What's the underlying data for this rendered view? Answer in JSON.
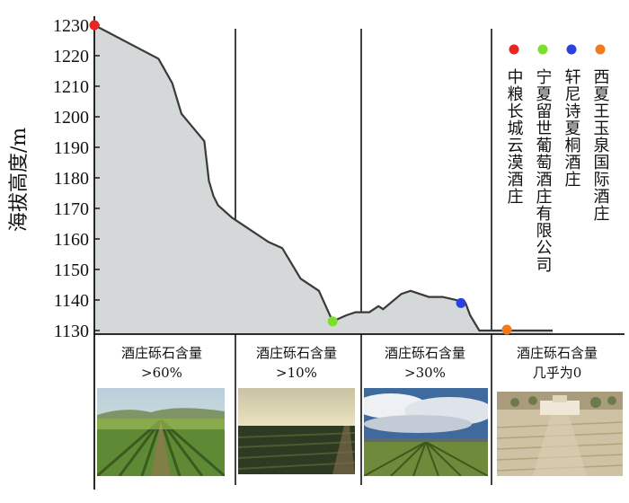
{
  "chart_data": {
    "type": "area",
    "ylabel": "海拔高度/m",
    "ylim": [
      1130,
      1230
    ],
    "yticks": [
      1130,
      1140,
      1150,
      1160,
      1170,
      1180,
      1190,
      1200,
      1210,
      1220,
      1230
    ],
    "fill_color": "#d4d8d8",
    "line_color": "#3a3a3a",
    "x": [
      0,
      0.14,
      0.17,
      0.19,
      0.24,
      0.25,
      0.26,
      0.27,
      0.3,
      0.34,
      0.38,
      0.41,
      0.45,
      0.49,
      0.52,
      0.55,
      0.57,
      0.6,
      0.62,
      0.63,
      0.67,
      0.69,
      0.73,
      0.76,
      0.79,
      0.81,
      0.82,
      0.84,
      0.88,
      0.92,
      1.0
    ],
    "y": [
      1230,
      1219,
      1211,
      1201,
      1192,
      1179,
      1174,
      1171,
      1167,
      1163,
      1159,
      1157,
      1147,
      1143,
      1133,
      1135,
      1136,
      1136,
      1138,
      1137,
      1142,
      1143,
      1141,
      1141,
      1140,
      1139,
      1135,
      1130,
      1130,
      1130,
      1130
    ],
    "wineries": [
      {
        "name": "中粮长城云漠酒庄",
        "color": "#e8251e",
        "x": 0,
        "y": 1230
      },
      {
        "name": "宁夏留世葡萄酒庄有限公司",
        "color": "#7ae02a",
        "x": 0.52,
        "y": 1133
      },
      {
        "name": "轩尼诗夏桐酒庄",
        "color": "#2a40e0",
        "x": 0.8,
        "y": 1139
      },
      {
        "name": "西夏王玉泉国际酒庄",
        "color": "#f07a1e",
        "x": 0.9,
        "y": 1130
      }
    ],
    "zones": [
      {
        "line1": "酒庄砾石含量",
        "line2": ">60%"
      },
      {
        "line1": "酒庄砾石含量",
        "line2": ">10%"
      },
      {
        "line1": "酒庄砾石含量",
        "line2": ">30%"
      },
      {
        "line1": "酒庄砾石含量",
        "line2": "几乎为0"
      }
    ]
  }
}
